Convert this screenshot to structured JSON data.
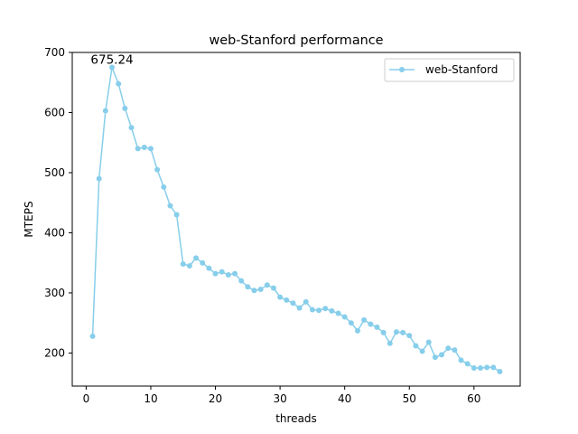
{
  "chart_data": {
    "type": "line",
    "title": "web-Stanford performance",
    "xlabel": "threads",
    "ylabel": "MTEPS",
    "xlim": [
      -2.15,
      67.15
    ],
    "ylim": [
      145,
      700
    ],
    "xticks": [
      0,
      10,
      20,
      30,
      40,
      50,
      60
    ],
    "yticks": [
      200,
      300,
      400,
      500,
      600,
      700
    ],
    "grid": false,
    "legend_position": "top-right",
    "series": [
      {
        "name": "web-Stanford",
        "color": "#87ceeb",
        "x": [
          1,
          2,
          3,
          4,
          5,
          6,
          7,
          8,
          9,
          10,
          11,
          12,
          13,
          14,
          15,
          16,
          17,
          18,
          19,
          20,
          21,
          22,
          23,
          24,
          25,
          26,
          27,
          28,
          29,
          30,
          31,
          32,
          33,
          34,
          35,
          36,
          37,
          38,
          39,
          40,
          41,
          42,
          43,
          44,
          45,
          46,
          47,
          48,
          49,
          50,
          51,
          52,
          53,
          54,
          55,
          56,
          57,
          58,
          59,
          60,
          61,
          62,
          63,
          64
        ],
        "y": [
          228,
          490,
          603,
          675.24,
          648,
          607,
          575,
          540,
          542,
          540,
          505,
          476,
          445,
          430,
          348,
          345,
          358,
          350,
          341,
          332,
          335,
          330,
          332,
          320,
          310,
          304,
          306,
          313,
          308,
          293,
          288,
          283,
          275,
          285,
          272,
          271,
          274,
          270,
          266,
          260,
          250,
          237,
          255,
          248,
          243,
          234,
          216,
          235,
          234,
          229,
          212,
          203,
          218,
          193,
          197,
          208,
          205,
          188,
          182,
          175,
          175,
          176,
          176,
          169
        ]
      }
    ],
    "annotations": [
      {
        "text": "675.24",
        "x": 4,
        "y": 675.24
      }
    ]
  }
}
